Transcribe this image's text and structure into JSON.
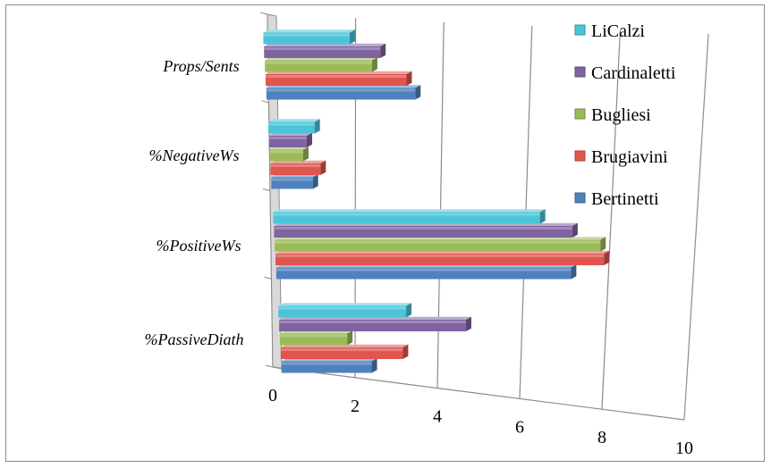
{
  "chart_data": {
    "type": "bar",
    "orientation": "horizontal",
    "three_d": true,
    "categories": [
      "%PassiveDiath",
      "%PositiveWs",
      "%NegativeWs",
      "Props/Sents"
    ],
    "series": [
      {
        "name": "Bertinetti",
        "color": "#4f81bd",
        "values": [
          2.3,
          7.3,
          1.0,
          3.5
        ]
      },
      {
        "name": "Brugiavini",
        "color": "#e0564f",
        "values": [
          3.1,
          8.1,
          1.2,
          3.3
        ]
      },
      {
        "name": "Bugliesi",
        "color": "#9bbb59",
        "values": [
          1.7,
          8.0,
          0.8,
          2.5
        ]
      },
      {
        "name": "Cardinaletti",
        "color": "#8064a2",
        "values": [
          4.7,
          7.3,
          0.9,
          2.7
        ]
      },
      {
        "name": "LiCalzi",
        "color": "#4bc4d8",
        "values": [
          3.2,
          6.5,
          1.1,
          2.0
        ]
      }
    ],
    "legend_order": [
      "LiCalzi",
      "Cardinaletti",
      "Bugliesi",
      "Brugiavini",
      "Bertinetti"
    ],
    "x_ticks": [
      "0",
      "2",
      "4",
      "6",
      "8",
      "10"
    ],
    "xlim": [
      0,
      10
    ],
    "grid": true,
    "legend_position": "top-right"
  }
}
